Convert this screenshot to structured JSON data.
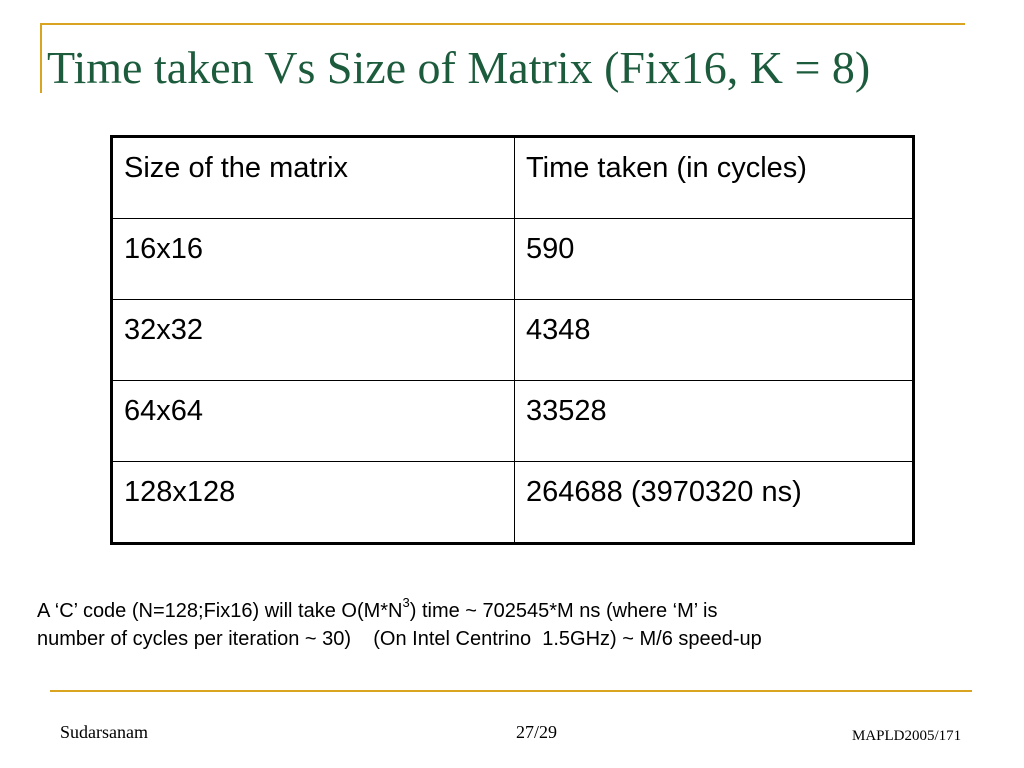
{
  "slide": {
    "title": "Time taken Vs Size of Matrix (Fix16, K = 8)"
  },
  "table": {
    "headers": [
      "Size of the matrix",
      "Time taken (in cycles)"
    ],
    "rows": [
      [
        "16x16",
        "590"
      ],
      [
        "32x32",
        "4348"
      ],
      [
        "64x64",
        "33528"
      ],
      [
        "128x128",
        "264688 (3970320 ns)"
      ]
    ]
  },
  "note": {
    "part1": "A ‘C’ code (N=128;Fix16) will take O(M*N",
    "sup": "3",
    "part2": ") time ~ 702545*M ns (where ‘M’ is",
    "line2": "number of cycles per iteration ~ 30)    (On Intel Centrino  1.5GHz) ~ M/6 speed-up"
  },
  "footer": {
    "author": "Sudarsanam",
    "page": "27/29",
    "conference": "MAPLD2005/171"
  },
  "colors": {
    "accent_rule": "#d9a520",
    "title": "#1c5b3c"
  }
}
